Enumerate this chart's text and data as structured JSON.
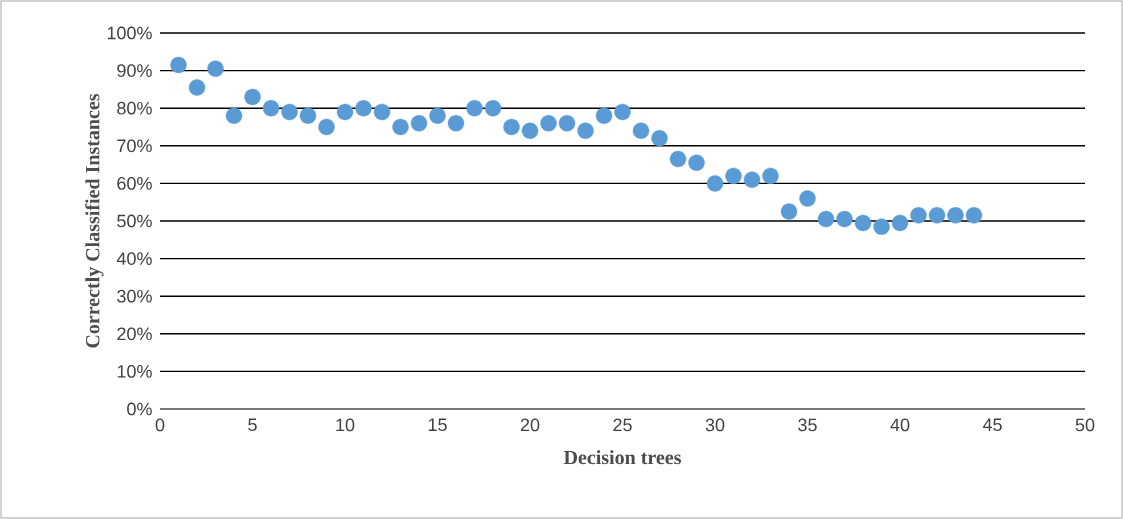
{
  "chart_data": {
    "type": "scatter",
    "xlabel": "Decision trees",
    "ylabel": "Correctly Classified Instances",
    "x": [
      1,
      2,
      3,
      4,
      5,
      6,
      7,
      8,
      9,
      10,
      11,
      12,
      13,
      14,
      15,
      16,
      17,
      18,
      19,
      20,
      21,
      22,
      23,
      24,
      25,
      26,
      27,
      28,
      29,
      30,
      31,
      32,
      33,
      34,
      35,
      36,
      37,
      38,
      39,
      40,
      41,
      42,
      43,
      44
    ],
    "values": [
      91.5,
      85.5,
      90.5,
      78,
      83,
      80,
      79,
      78,
      75,
      79,
      80,
      79,
      75,
      76,
      78,
      76,
      80,
      80,
      75,
      74,
      76,
      76,
      74,
      78,
      79,
      74,
      72,
      66.5,
      65.5,
      60,
      62,
      61,
      62,
      52.5,
      56,
      50.5,
      50.5,
      49.5,
      48.5,
      49.5,
      51.5,
      51.5,
      51.5,
      51.5
    ],
    "color": "#5b9bd5",
    "marker": "circle",
    "grid": "y",
    "xlim": [
      0,
      50
    ],
    "xticks": [
      0,
      5,
      10,
      15,
      20,
      25,
      30,
      35,
      40,
      45,
      50
    ],
    "ylim": [
      0,
      100
    ],
    "yticks": [
      {
        "value": 0,
        "label": "0%"
      },
      {
        "value": 10,
        "label": "10%"
      },
      {
        "value": 20,
        "label": "20%"
      },
      {
        "value": 30,
        "label": "30%"
      },
      {
        "value": 40,
        "label": "40%"
      },
      {
        "value": 50,
        "label": "50%"
      },
      {
        "value": 60,
        "label": "60%"
      },
      {
        "value": 70,
        "label": "70%"
      },
      {
        "value": 80,
        "label": "80%"
      },
      {
        "value": 90,
        "label": "90%"
      },
      {
        "value": 100,
        "label": "100%"
      }
    ]
  }
}
